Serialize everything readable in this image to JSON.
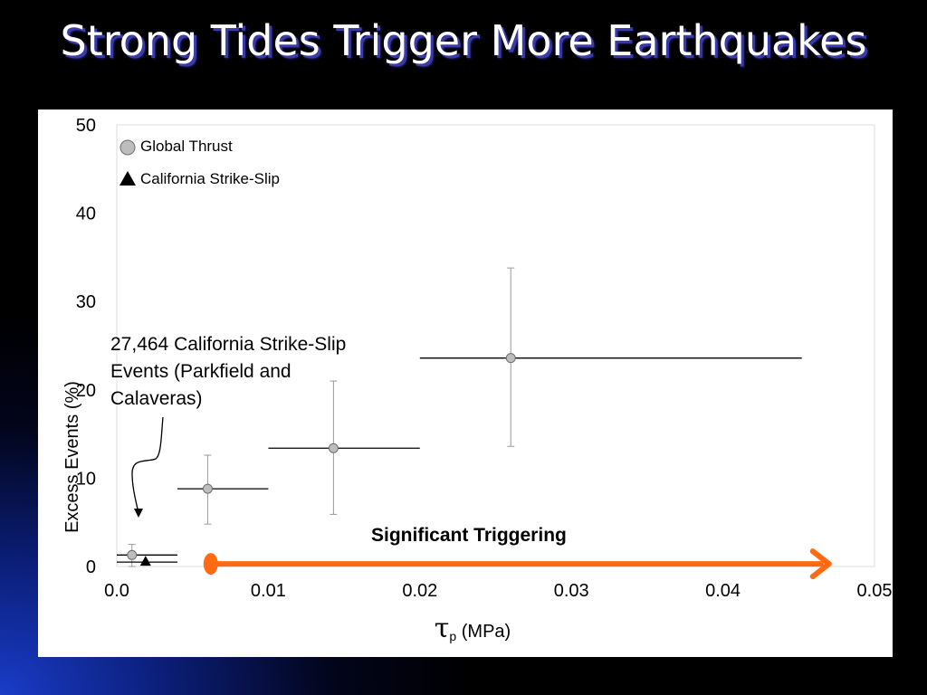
{
  "slide": {
    "title": "Strong Tides Trigger More Earthquakes"
  },
  "chart_data": {
    "type": "scatter",
    "xlabel_symbol": "τ",
    "xlabel_subscript": "p",
    "xlabel_unit": " (MPa)",
    "ylabel": "Excess Events (%)",
    "xlim": [
      0,
      0.05
    ],
    "ylim": [
      0,
      50
    ],
    "x_ticks": [
      0,
      0.01,
      0.02,
      0.03,
      0.04,
      0.05
    ],
    "x_tick_labels": [
      "0.0",
      "0.01",
      "0.02",
      "0.03",
      "0.04",
      "0.05"
    ],
    "y_ticks": [
      0,
      10,
      20,
      30,
      40,
      50
    ],
    "y_tick_labels": [
      "0",
      "10",
      "20",
      "30",
      "40",
      "50"
    ],
    "grid": false,
    "legend_position": "top-left",
    "series": [
      {
        "name": "Global Thrust",
        "marker": "circle",
        "color": "#bdbdbd",
        "points": [
          {
            "x": 0.001,
            "y": 1.3,
            "xmin": 0.0,
            "xmax": 0.004,
            "ymin": 0.0,
            "ymax": 2.5
          },
          {
            "x": 0.006,
            "y": 8.8,
            "xmin": 0.004,
            "xmax": 0.01,
            "ymin": 4.8,
            "ymax": 12.6
          },
          {
            "x": 0.0143,
            "y": 13.4,
            "xmin": 0.01,
            "xmax": 0.02,
            "ymin": 5.9,
            "ymax": 21.0
          },
          {
            "x": 0.026,
            "y": 23.6,
            "xmin": 0.02,
            "xmax": 0.0452,
            "ymin": 13.6,
            "ymax": 33.8
          }
        ]
      },
      {
        "name": "California Strike-Slip",
        "marker": "triangle",
        "color": "#000000",
        "points": [
          {
            "x": 0.0019,
            "y": 0.5,
            "xmin": 0.0,
            "xmax": 0.004
          }
        ]
      }
    ],
    "annotations": [
      {
        "text": "27,464 California Strike-Slip Events (Parkfield and Calaveras)"
      },
      {
        "text": "Significant Triggering",
        "arrow_from_x": 0.0062,
        "arrow_to_x": 0.047,
        "arrow_y": 0.3,
        "color": "#ff6a13"
      }
    ]
  }
}
